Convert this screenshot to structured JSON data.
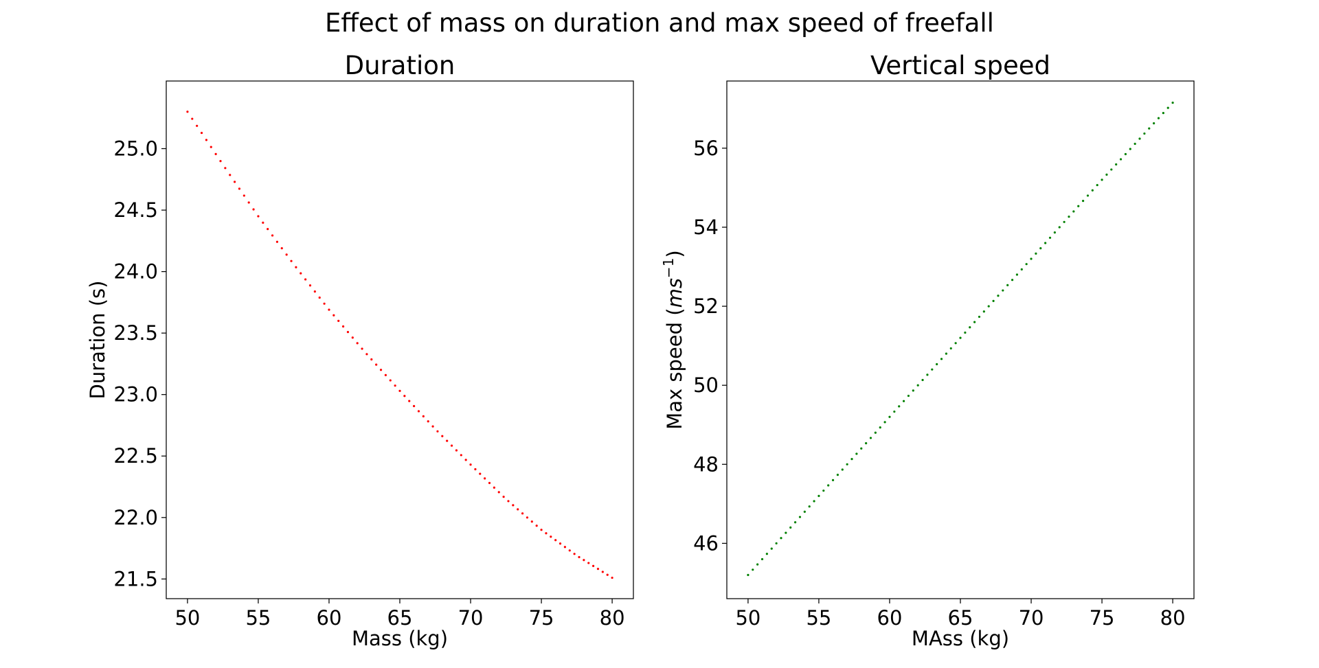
{
  "figure": {
    "suptitle": "Effect of mass on duration and max speed of freefall"
  },
  "chart_data": [
    {
      "type": "line",
      "title": "Duration",
      "xlabel": "Mass (kg)",
      "ylabel": "Duration (s)",
      "xlim": [
        48.5,
        81.5
      ],
      "ylim": [
        21.34,
        25.55
      ],
      "xticks": [
        50,
        55,
        60,
        65,
        70,
        75,
        80
      ],
      "yticks": [
        21.5,
        22.0,
        22.5,
        23.0,
        23.5,
        24.0,
        24.5,
        25.0
      ],
      "ytick_decimals": 1,
      "line_style": "dotted",
      "color": "#ff0000",
      "grid": false,
      "x": [
        50,
        52.5,
        55,
        57.5,
        60,
        62.5,
        65,
        67.5,
        70,
        72.5,
        75,
        77.5,
        80
      ],
      "y": [
        25.3,
        24.87,
        24.45,
        24.06,
        23.69,
        23.35,
        23.03,
        22.72,
        22.43,
        22.15,
        21.9,
        21.69,
        21.51
      ]
    },
    {
      "type": "line",
      "title": "Vertical speed",
      "xlabel": "MAss (kg)",
      "ylabel": "Max speed (ms⁻¹)",
      "ylabel_parts": {
        "prefix": "Max speed (",
        "unit": "ms",
        "exp": "−1",
        "suffix": ")"
      },
      "xlim": [
        48.5,
        81.5
      ],
      "ylim": [
        44.6,
        57.7
      ],
      "xticks": [
        50,
        55,
        60,
        65,
        70,
        75,
        80
      ],
      "yticks": [
        46,
        48,
        50,
        52,
        54,
        56
      ],
      "ytick_decimals": 0,
      "line_style": "dotted",
      "color": "#008000",
      "grid": false,
      "x": [
        50,
        55,
        60,
        65,
        70,
        75,
        80
      ],
      "y": [
        45.2,
        47.2,
        49.2,
        51.2,
        53.2,
        55.2,
        57.15
      ]
    }
  ]
}
